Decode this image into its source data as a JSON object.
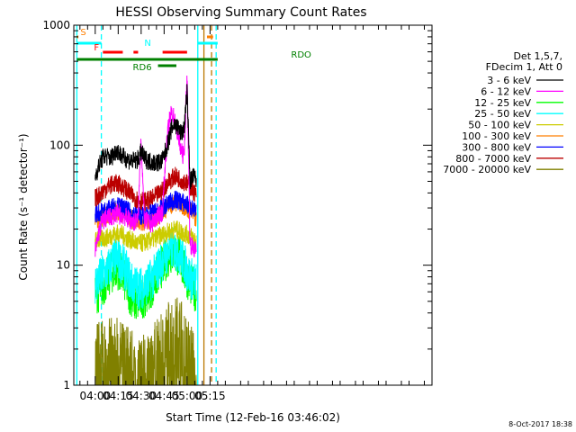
{
  "chart_data": {
    "type": "line",
    "title": "HESSI Observing Summary Count Rates",
    "xlabel": "Start Time (12-Feb-16 03:46:02)",
    "ylabel": "Count Rate (s⁻¹ detector⁻¹)",
    "yscale": "log",
    "ylim": [
      1,
      1000
    ],
    "xlim_min": [
      226,
      460
    ],
    "x_ticks": [
      {
        "t": 240,
        "label": "04:00"
      },
      {
        "t": 255,
        "label": "04:15"
      },
      {
        "t": 270,
        "label": "04:30"
      },
      {
        "t": 285,
        "label": "04:45"
      },
      {
        "t": 300,
        "label": "05:00"
      },
      {
        "t": 315,
        "label": "05:15"
      }
    ],
    "y_ticks": [
      {
        "v": 1,
        "label": "1"
      },
      {
        "v": 10,
        "label": "10"
      },
      {
        "v": 100,
        "label": "100"
      },
      {
        "v": 1000,
        "label": "1000"
      }
    ],
    "legend": {
      "placement": "right",
      "header": [
        "Det 1,5,7,",
        "FDecim 1, Att 0"
      ]
    },
    "series": [
      {
        "name": "3 - 6 keV",
        "color": "#000000",
        "t": [
          240,
          242,
          244,
          246,
          248,
          250,
          252,
          254,
          256,
          258,
          260,
          262,
          264,
          266,
          268,
          270,
          272,
          274,
          276,
          278,
          280,
          282,
          284,
          286,
          288,
          290,
          292,
          294,
          296,
          298,
          300,
          302,
          304,
          306
        ],
        "values": [
          55,
          65,
          75,
          82,
          80,
          78,
          84,
          92,
          85,
          80,
          78,
          75,
          74,
          74,
          76,
          88,
          78,
          75,
          73,
          72,
          72,
          72,
          75,
          90,
          110,
          140,
          150,
          140,
          125,
          135,
          280,
          50,
          55,
          52
        ]
      },
      {
        "name": "6 - 12 keV",
        "color": "#ff00ff",
        "t": [
          240,
          242,
          244,
          246,
          248,
          250,
          252,
          254,
          256,
          258,
          260,
          262,
          264,
          266,
          268,
          270,
          272,
          274,
          276,
          278,
          280,
          282,
          284,
          286,
          288,
          290,
          292,
          294,
          296,
          298,
          300,
          302,
          304,
          306
        ],
        "values": [
          13,
          18,
          22,
          24,
          25,
          25,
          26,
          27,
          26,
          26,
          25,
          24,
          23,
          23,
          24,
          120,
          24,
          23,
          22,
          23,
          25,
          26,
          28,
          80,
          150,
          190,
          160,
          120,
          90,
          80,
          380,
          15,
          14,
          13
        ]
      },
      {
        "name": "12 - 25 keV",
        "color": "#00ff00",
        "t": [
          240,
          242,
          244,
          246,
          248,
          250,
          252,
          254,
          256,
          258,
          260,
          262,
          264,
          266,
          268,
          270,
          272,
          274,
          276,
          278,
          280,
          282,
          284,
          286,
          288,
          290,
          292,
          294,
          296,
          298,
          300,
          302,
          304,
          306
        ],
        "values": [
          6,
          6,
          6.5,
          7,
          8,
          8.5,
          9,
          9.5,
          9,
          8,
          7,
          6,
          5.5,
          5,
          5,
          5.2,
          5.5,
          6,
          6.5,
          7,
          8,
          9,
          10,
          11,
          12,
          13,
          13,
          12,
          11,
          9,
          8,
          7,
          6.5,
          6
        ]
      },
      {
        "name": "25 - 50 keV",
        "color": "#00ffff",
        "t": [
          240,
          242,
          244,
          246,
          248,
          250,
          252,
          254,
          256,
          258,
          260,
          262,
          264,
          266,
          268,
          270,
          272,
          274,
          276,
          278,
          280,
          282,
          284,
          286,
          288,
          290,
          292,
          294,
          296,
          298,
          300,
          302,
          304,
          306
        ],
        "values": [
          7,
          7.5,
          8,
          8.5,
          9,
          10,
          11,
          11.5,
          11,
          10,
          9,
          8,
          7,
          6.8,
          6.5,
          6.5,
          6.6,
          7,
          7.5,
          8,
          9,
          10,
          11,
          12,
          13,
          14,
          13.5,
          13,
          12,
          10.5,
          9,
          8,
          7.5,
          7
        ]
      },
      {
        "name": "50 - 100 keV",
        "color": "#cccc00",
        "t": [
          240,
          244,
          248,
          252,
          256,
          260,
          264,
          268,
          272,
          276,
          280,
          284,
          288,
          292,
          296,
          300,
          304,
          306
        ],
        "values": [
          16,
          16.5,
          17,
          18,
          18.5,
          17,
          16,
          15,
          15.5,
          16,
          17,
          18,
          19,
          20,
          19,
          18,
          17,
          16
        ]
      },
      {
        "name": "100 - 300 keV",
        "color": "#ff7f00",
        "t": [
          240,
          244,
          248,
          252,
          256,
          260,
          264,
          268,
          272,
          276,
          280,
          284,
          288,
          292,
          296,
          300,
          304,
          306
        ],
        "values": [
          24,
          25,
          26,
          28,
          28,
          26,
          24,
          23,
          23,
          24,
          25,
          28,
          31,
          33,
          32,
          30,
          27,
          24
        ]
      },
      {
        "name": "300 - 800 keV",
        "color": "#0000ff",
        "t": [
          240,
          244,
          248,
          252,
          256,
          260,
          264,
          268,
          272,
          276,
          280,
          284,
          288,
          292,
          296,
          300,
          304,
          306
        ],
        "values": [
          27,
          28,
          29,
          31,
          31,
          29,
          27,
          26,
          26,
          27,
          28,
          30,
          33,
          35,
          34,
          32,
          29,
          27
        ]
      },
      {
        "name": "800 - 7000 keV",
        "color": "#bb0000",
        "t": [
          240,
          244,
          248,
          252,
          256,
          260,
          264,
          268,
          272,
          276,
          280,
          284,
          288,
          292,
          296,
          300,
          304,
          306
        ],
        "values": [
          36,
          40,
          45,
          48,
          47,
          43,
          38,
          35,
          34,
          35,
          38,
          42,
          50,
          55,
          52,
          48,
          42,
          38
        ]
      },
      {
        "name": "7000 - 20000 keV",
        "color": "#808000",
        "t": [
          240,
          244,
          248,
          252,
          256,
          260,
          264,
          268,
          272,
          276,
          280,
          284,
          288,
          292,
          296,
          300,
          304,
          306
        ],
        "values": [
          1.6,
          1.7,
          1.6,
          1.7,
          1.6,
          1.5,
          1.4,
          1.3,
          1.3,
          1.4,
          1.6,
          1.8,
          2.4,
          2.6,
          2.5,
          1.8,
          1.5,
          1.4
        ]
      }
    ],
    "flag_bars": [
      {
        "label": "S",
        "color": "#ff7f00",
        "t_start": 228,
        "t_end": 229,
        "level": 1
      },
      {
        "label": "N",
        "color": "#00ffff",
        "t_start": 228,
        "t_end": 244,
        "level": 2
      },
      {
        "label": "",
        "color": "#00ffff",
        "t_start": 307,
        "t_end": 320,
        "level": 2
      },
      {
        "label": "",
        "color": "#ff7f00",
        "t_start": 313,
        "t_end": 317,
        "level": 1
      },
      {
        "label": "F",
        "color": "#ff0000",
        "t_start": 245,
        "t_end": 258,
        "level": 3
      },
      {
        "label": "",
        "color": "#ff0000",
        "t_start": 265,
        "t_end": 268,
        "level": 3
      },
      {
        "label": "",
        "color": "#ff0000",
        "t_start": 284,
        "t_end": 300,
        "level": 3
      },
      {
        "label": "RDO",
        "color": "#008000",
        "t_start": 228,
        "t_end": 320,
        "level": 4
      },
      {
        "label": "RD6",
        "color": "#008000",
        "t_start": 281,
        "t_end": 293,
        "level": 5
      }
    ],
    "vertical_lines": [
      {
        "t": 228,
        "color": "#00ffff",
        "style": "solid"
      },
      {
        "t": 244,
        "color": "#00ffff",
        "style": "dashed"
      },
      {
        "t": 307,
        "color": "#00ffff",
        "style": "solid"
      },
      {
        "t": 311,
        "color": "#bb7700",
        "style": "solid"
      },
      {
        "t": 316,
        "color": "#bb7700",
        "style": "dashed"
      },
      {
        "t": 319,
        "color": "#00ffff",
        "style": "dashed"
      }
    ],
    "footer_stamp": "8-Oct-2017 18:38"
  }
}
